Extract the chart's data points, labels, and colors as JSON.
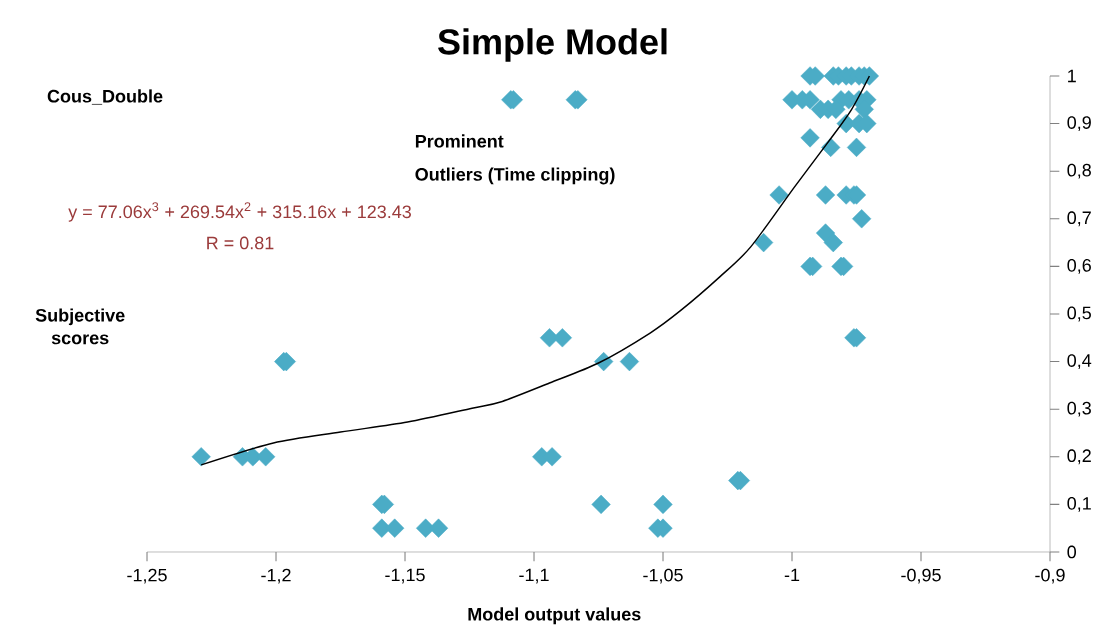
{
  "chart_data": {
    "type": "scatter",
    "title": "Simple Model",
    "xlabel": "Model output values",
    "ylabel": "Subjective scores",
    "annotations": [
      "Cous_Double",
      "Prominent",
      "Outliers (Time clipping)",
      "y = 77.06x$^{3}$ + 269.54x$^{2}$ + 315.16x + 123.43",
      "R = 0.81"
    ],
    "xlim": [
      -1.25,
      -0.9
    ],
    "ylim": [
      0,
      1
    ],
    "xticks": [
      {
        "value": -1.25,
        "label": "-1,25"
      },
      {
        "value": -1.2,
        "label": "-1,2"
      },
      {
        "value": -1.15,
        "label": "-1,15"
      },
      {
        "value": -1.1,
        "label": "-1,1"
      },
      {
        "value": -1.05,
        "label": "-1,05"
      },
      -1,
      {
        "value": -0.95,
        "label": "-0,95"
      },
      {
        "value": -0.9,
        "label": "-0,9"
      }
    ],
    "yticks": [
      0,
      {
        "value": 0.1,
        "label": "0,1"
      },
      {
        "value": 0.2,
        "label": "0,2"
      },
      {
        "value": 0.3,
        "label": "0,3"
      },
      {
        "value": 0.4,
        "label": "0,4"
      },
      {
        "value": 0.5,
        "label": "0,5"
      },
      {
        "value": 0.6,
        "label": "0,6"
      },
      {
        "value": 0.7,
        "label": "0,7"
      },
      {
        "value": 0.8,
        "label": "0,8"
      },
      {
        "value": 0.9,
        "label": "0,9"
      },
      1
    ],
    "marker": "diamond",
    "series": [
      {
        "color": "#4bacc6",
        "x": [
          -1.229,
          -1.213,
          -1.209,
          -1.204,
          -1.197,
          -1.196,
          -1.159,
          -1.158,
          -1.159,
          -1.154,
          -1.142,
          -1.137,
          -1.109,
          -1.108,
          -1.084,
          -1.083,
          -1.094,
          -1.089,
          -1.073,
          -1.063,
          -1.097,
          -1.093,
          -1.074,
          -1.05,
          -1.052,
          -1.05,
          -1.021,
          -1.02,
          -1.005,
          -1.011,
          -0.993,
          -0.991,
          -0.984,
          -0.982,
          -0.979,
          -0.977,
          -0.974,
          -0.972,
          -0.97,
          -1.0,
          -0.996,
          -0.993,
          -0.981,
          -0.978,
          -0.974,
          -0.971,
          -0.989,
          -0.986,
          -0.983,
          -0.972,
          -0.979,
          -0.974,
          -0.971,
          -0.993,
          -0.985,
          -0.975,
          -0.987,
          -0.979,
          -0.976,
          -0.975,
          -0.973,
          -0.987,
          -0.984,
          -0.993,
          -0.992,
          -0.981,
          -0.98,
          -0.976,
          -0.975
        ],
        "values": [
          0.2,
          0.2,
          0.2,
          0.2,
          0.4,
          0.4,
          0.1,
          0.1,
          0.05,
          0.05,
          0.05,
          0.05,
          0.95,
          0.95,
          0.95,
          0.95,
          0.45,
          0.45,
          0.4,
          0.4,
          0.2,
          0.2,
          0.1,
          0.1,
          0.05,
          0.05,
          0.15,
          0.15,
          0.75,
          0.65,
          1,
          1,
          1,
          1,
          1,
          1,
          1,
          1,
          1,
          0.95,
          0.95,
          0.95,
          0.95,
          0.95,
          0.95,
          0.95,
          0.93,
          0.93,
          0.93,
          0.93,
          0.9,
          0.9,
          0.9,
          0.87,
          0.85,
          0.85,
          0.75,
          0.75,
          0.75,
          0.75,
          0.7,
          0.67,
          0.65,
          0.6,
          0.6,
          0.6,
          0.6,
          0.45,
          0.45
        ]
      },
      {
        "type": "line",
        "color": "#000000",
        "marker": "none",
        "x": [
          -1.229,
          -1.201,
          -1.175,
          -1.149,
          -1.124,
          -1.113,
          -1.094,
          -1.075,
          -1.055,
          -1.043,
          -1.028,
          -1.016,
          -0.999,
          -0.986,
          -0.977,
          -0.97
        ],
        "values": [
          0.183,
          0.229,
          0.252,
          0.273,
          0.302,
          0.315,
          0.355,
          0.397,
          0.46,
          0.508,
          0.578,
          0.641,
          0.767,
          0.861,
          0.929,
          1.0
        ]
      }
    ]
  }
}
